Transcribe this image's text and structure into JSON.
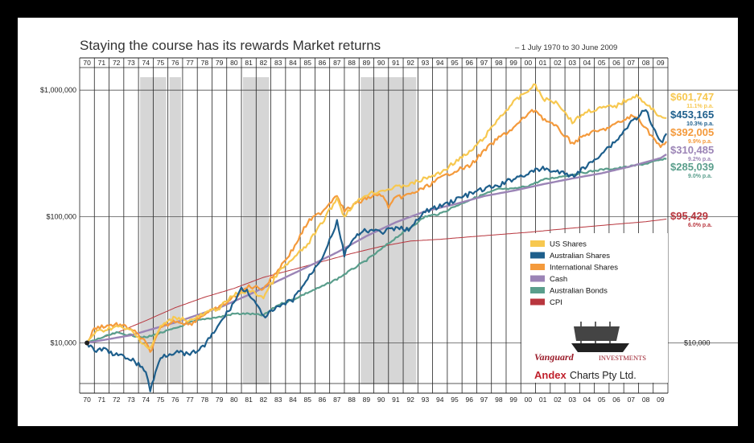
{
  "chart_data": {
    "type": "line",
    "title": "Staying the course has its rewards Market returns",
    "subtitle": "– 1 July 1970 to 30 June 2009",
    "y_scale": "log",
    "ylim": [
      4000,
      1800000
    ],
    "y_ticks": [
      {
        "value": 10000,
        "label": "$10,000"
      },
      {
        "value": 100000,
        "label": "$100,000"
      },
      {
        "value": 1000000,
        "label": "$1,000,000"
      }
    ],
    "right_axis_label": "$10,000",
    "years": [
      "70",
      "71",
      "72",
      "73",
      "74",
      "75",
      "76",
      "77",
      "78",
      "79",
      "80",
      "81",
      "82",
      "83",
      "84",
      "85",
      "86",
      "87",
      "88",
      "89",
      "90",
      "91",
      "92",
      "93",
      "94",
      "95",
      "96",
      "97",
      "98",
      "99",
      "00",
      "01",
      "02",
      "03",
      "04",
      "05",
      "06",
      "07",
      "08",
      "09"
    ],
    "shaded_periods": [
      [
        4,
        6
      ],
      [
        6,
        7
      ],
      [
        11,
        13
      ],
      [
        19,
        23
      ]
    ],
    "series": [
      {
        "name": "US Shares",
        "color": "#f7c850",
        "final_label": "$601,747",
        "rate_label": "11.1% p.a.",
        "points": [
          [
            0,
            10000
          ],
          [
            0.5,
            12000
          ],
          [
            1,
            12500
          ],
          [
            2,
            13500
          ],
          [
            3,
            12500
          ],
          [
            4,
            9500
          ],
          [
            4.3,
            9000
          ],
          [
            5,
            13500
          ],
          [
            6,
            16000
          ],
          [
            7,
            15000
          ],
          [
            8,
            17000
          ],
          [
            9,
            19000
          ],
          [
            10,
            24000
          ],
          [
            11,
            26000
          ],
          [
            12,
            23000
          ],
          [
            13,
            36000
          ],
          [
            14,
            46000
          ],
          [
            15,
            60000
          ],
          [
            16,
            90000
          ],
          [
            17,
            140000
          ],
          [
            17.5,
            100000
          ],
          [
            18,
            120000
          ],
          [
            19,
            150000
          ],
          [
            20,
            160000
          ],
          [
            21,
            170000
          ],
          [
            22,
            180000
          ],
          [
            23,
            200000
          ],
          [
            24,
            220000
          ],
          [
            25,
            270000
          ],
          [
            26,
            320000
          ],
          [
            27,
            420000
          ],
          [
            28,
            600000
          ],
          [
            29,
            800000
          ],
          [
            30,
            1000000
          ],
          [
            30.5,
            1100000
          ],
          [
            31,
            850000
          ],
          [
            32,
            800000
          ],
          [
            33,
            560000
          ],
          [
            34,
            680000
          ],
          [
            35,
            720000
          ],
          [
            36,
            750000
          ],
          [
            37,
            880000
          ],
          [
            37.5,
            900000
          ],
          [
            38,
            760000
          ],
          [
            38.5,
            700000
          ],
          [
            39,
            620000
          ],
          [
            39.4,
            601747
          ]
        ]
      },
      {
        "name": "Australian Shares",
        "color": "#1e5f8c",
        "final_label": "$453,165",
        "rate_label": "10.3% p.a.",
        "points": [
          [
            0,
            10000
          ],
          [
            0.5,
            8500
          ],
          [
            1,
            9000
          ],
          [
            2,
            8000
          ],
          [
            3,
            7500
          ],
          [
            4,
            6000
          ],
          [
            4.3,
            4200
          ],
          [
            5,
            7800
          ],
          [
            6,
            8500
          ],
          [
            7,
            8000
          ],
          [
            8,
            9500
          ],
          [
            9,
            14000
          ],
          [
            10,
            21000
          ],
          [
            10.5,
            27000
          ],
          [
            11,
            25000
          ],
          [
            12,
            16000
          ],
          [
            13,
            19000
          ],
          [
            14,
            22000
          ],
          [
            15,
            32000
          ],
          [
            16,
            48000
          ],
          [
            17,
            90000
          ],
          [
            17.5,
            50000
          ],
          [
            18,
            65000
          ],
          [
            19,
            78000
          ],
          [
            20,
            75000
          ],
          [
            21,
            80000
          ],
          [
            22,
            80000
          ],
          [
            23,
            110000
          ],
          [
            24,
            120000
          ],
          [
            25,
            135000
          ],
          [
            26,
            150000
          ],
          [
            27,
            165000
          ],
          [
            28,
            175000
          ],
          [
            29,
            200000
          ],
          [
            30,
            220000
          ],
          [
            31,
            240000
          ],
          [
            32,
            225000
          ],
          [
            33,
            210000
          ],
          [
            34,
            250000
          ],
          [
            35,
            320000
          ],
          [
            36,
            400000
          ],
          [
            37,
            560000
          ],
          [
            38,
            700000
          ],
          [
            38.5,
            500000
          ],
          [
            39,
            380000
          ],
          [
            39.4,
            453165
          ]
        ]
      },
      {
        "name": "International Shares",
        "color": "#f49a3c",
        "final_label": "$392,005",
        "rate_label": "9.9% p.a.",
        "points": [
          [
            0,
            10000
          ],
          [
            0.5,
            13000
          ],
          [
            1,
            13500
          ],
          [
            2,
            14000
          ],
          [
            3,
            13000
          ],
          [
            4,
            10000
          ],
          [
            4.3,
            8500
          ],
          [
            5,
            13000
          ],
          [
            6,
            15000
          ],
          [
            7,
            14000
          ],
          [
            8,
            17000
          ],
          [
            9,
            19000
          ],
          [
            10,
            23000
          ],
          [
            11,
            28000
          ],
          [
            12,
            27000
          ],
          [
            13,
            38000
          ],
          [
            14,
            55000
          ],
          [
            15,
            90000
          ],
          [
            16,
            110000
          ],
          [
            17,
            150000
          ],
          [
            17.5,
            110000
          ],
          [
            18,
            120000
          ],
          [
            19,
            140000
          ],
          [
            20,
            150000
          ],
          [
            20.5,
            120000
          ],
          [
            21,
            140000
          ],
          [
            22,
            150000
          ],
          [
            23,
            170000
          ],
          [
            24,
            200000
          ],
          [
            25,
            230000
          ],
          [
            26,
            250000
          ],
          [
            27,
            330000
          ],
          [
            28,
            420000
          ],
          [
            29,
            500000
          ],
          [
            30,
            650000
          ],
          [
            30.5,
            700000
          ],
          [
            31,
            600000
          ],
          [
            32,
            500000
          ],
          [
            33,
            380000
          ],
          [
            34,
            450000
          ],
          [
            35,
            480000
          ],
          [
            36,
            540000
          ],
          [
            37,
            620000
          ],
          [
            37.5,
            600000
          ],
          [
            38,
            500000
          ],
          [
            38.5,
            420000
          ],
          [
            39,
            350000
          ],
          [
            39.4,
            392005
          ]
        ]
      },
      {
        "name": "Cash",
        "color": "#9b84b6",
        "final_label": "$310,485",
        "rate_label": "9.2% p.a.",
        "points": [
          [
            0,
            10000
          ],
          [
            3,
            11500
          ],
          [
            6,
            14500
          ],
          [
            9,
            19000
          ],
          [
            11,
            24000
          ],
          [
            13,
            31000
          ],
          [
            15,
            40000
          ],
          [
            17,
            52000
          ],
          [
            19,
            70000
          ],
          [
            21,
            90000
          ],
          [
            23,
            110000
          ],
          [
            25,
            125000
          ],
          [
            27,
            145000
          ],
          [
            29,
            160000
          ],
          [
            31,
            180000
          ],
          [
            33,
            200000
          ],
          [
            35,
            220000
          ],
          [
            37,
            250000
          ],
          [
            39,
            290000
          ],
          [
            39.4,
            310485
          ]
        ]
      },
      {
        "name": "Australian Bonds",
        "color": "#5a9e8c",
        "final_label": "$285,039",
        "rate_label": "9.0% p.a.",
        "points": [
          [
            0,
            10000
          ],
          [
            1,
            11000
          ],
          [
            2,
            12000
          ],
          [
            3,
            11500
          ],
          [
            4,
            11000
          ],
          [
            5,
            12000
          ],
          [
            6,
            13000
          ],
          [
            7,
            14500
          ],
          [
            8,
            15500
          ],
          [
            9,
            16000
          ],
          [
            10,
            17000
          ],
          [
            11,
            17000
          ],
          [
            12,
            16500
          ],
          [
            13,
            20000
          ],
          [
            14,
            22000
          ],
          [
            15,
            25000
          ],
          [
            16,
            28000
          ],
          [
            17,
            32000
          ],
          [
            18,
            38000
          ],
          [
            19,
            45000
          ],
          [
            20,
            55000
          ],
          [
            21,
            68000
          ],
          [
            22,
            82000
          ],
          [
            23,
            100000
          ],
          [
            24,
            105000
          ],
          [
            25,
            120000
          ],
          [
            26,
            135000
          ],
          [
            27,
            150000
          ],
          [
            28,
            165000
          ],
          [
            29,
            165000
          ],
          [
            30,
            175000
          ],
          [
            31,
            195000
          ],
          [
            32,
            205000
          ],
          [
            33,
            215000
          ],
          [
            34,
            225000
          ],
          [
            35,
            235000
          ],
          [
            36,
            240000
          ],
          [
            37,
            250000
          ],
          [
            38,
            262000
          ],
          [
            39,
            280000
          ],
          [
            39.4,
            285039
          ]
        ]
      },
      {
        "name": "CPI",
        "color": "#b8363e",
        "final_label": "$95,429",
        "rate_label": "6.0% p.a.",
        "points": [
          [
            0,
            10000
          ],
          [
            2,
            12000
          ],
          [
            4,
            15000
          ],
          [
            6,
            19000
          ],
          [
            8,
            23000
          ],
          [
            10,
            27000
          ],
          [
            12,
            33000
          ],
          [
            14,
            38000
          ],
          [
            16,
            44000
          ],
          [
            18,
            51000
          ],
          [
            20,
            58000
          ],
          [
            22,
            64000
          ],
          [
            24,
            66000
          ],
          [
            26,
            69000
          ],
          [
            28,
            72000
          ],
          [
            30,
            75000
          ],
          [
            32,
            79000
          ],
          [
            34,
            83000
          ],
          [
            36,
            87000
          ],
          [
            38,
            91000
          ],
          [
            39.4,
            95429
          ]
        ]
      }
    ],
    "legend_position": "bottom-right",
    "grid": true
  },
  "brand": {
    "vanguard": "Vanguard",
    "investments": "INVESTMENTS",
    "andex": "Andex",
    "charts": "Charts Pty Ltd."
  }
}
